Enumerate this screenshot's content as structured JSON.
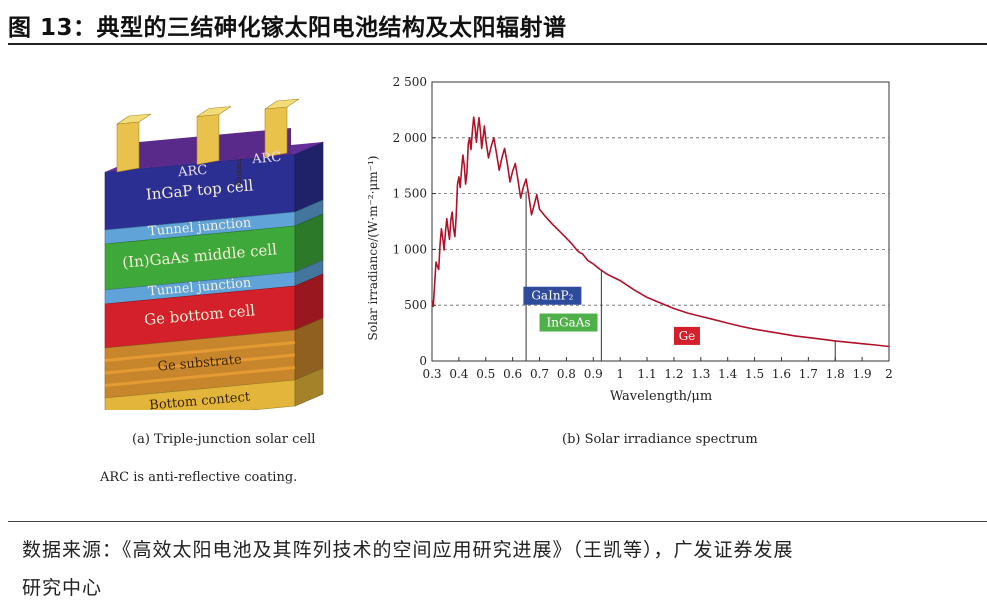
{
  "figure": {
    "title": "图 13：典型的三结砷化镓太阳电池结构及太阳辐射谱",
    "source_line1": "数据来源：《高效太阳电池及其阵列技术的空间应用研究进展》（王凯等），广发证券发展",
    "source_line2": "研究中心",
    "note": "ARC is anti-reflective coating."
  },
  "cell": {
    "caption": "(a) Triple-junction solar cell",
    "arc_left": "ARC",
    "arc_right": "ARC",
    "contact": "Contact",
    "layers": [
      {
        "label": "InGaP top cell",
        "color": "#2b2f92"
      },
      {
        "label": "Tunnel junction",
        "color": "#5fa3d8"
      },
      {
        "label": "(In)GaAs middle cell",
        "color": "#3fa83a"
      },
      {
        "label": "Tunnel junction",
        "color": "#5fa3d8"
      },
      {
        "label": "Ge bottom cell",
        "color": "#d4202a"
      },
      {
        "label": "Ge substrate",
        "color": "#c8862c"
      },
      {
        "label": "Bottom contect",
        "color": "#e3b53a"
      }
    ],
    "arc_color": "#5a2a8a",
    "contact_color": "#e8c24a"
  },
  "chart_data": {
    "type": "line",
    "caption": "(b) Solar irradiance spectrum",
    "xlabel": "Wavelength/μm",
    "ylabel": "Solar irradiance/(W·m⁻²·μm⁻¹)",
    "xlim": [
      0.3,
      2.0
    ],
    "ylim": [
      0,
      2500
    ],
    "xticks": [
      0.3,
      0.4,
      0.5,
      0.6,
      0.7,
      0.8,
      0.9,
      1.0,
      1.1,
      1.2,
      1.3,
      1.4,
      1.5,
      1.6,
      1.7,
      1.8,
      1.9,
      2.0
    ],
    "yticks": [
      0,
      500,
      1000,
      1500,
      2000,
      2500
    ],
    "ytick_labels": [
      "0",
      "500",
      "1 000",
      "1 500",
      "2 000",
      "2 500"
    ],
    "grid": "horizontal dashed",
    "line_color": "#b0122a",
    "series": [
      {
        "x": [
          0.3,
          0.31,
          0.32,
          0.33,
          0.34,
          0.35,
          0.36,
          0.37,
          0.38,
          0.39,
          0.4,
          0.41,
          0.42,
          0.43,
          0.44,
          0.45,
          0.46,
          0.47,
          0.48,
          0.49,
          0.5,
          0.52,
          0.54,
          0.56,
          0.58,
          0.6,
          0.62,
          0.64,
          0.66,
          0.68,
          0.7,
          0.72,
          0.75,
          0.78,
          0.8,
          0.82,
          0.84,
          0.85,
          0.86,
          0.88,
          0.9,
          0.92,
          0.95,
          1.0,
          1.05,
          1.1,
          1.15,
          1.2,
          1.25,
          1.3,
          1.35,
          1.4,
          1.45,
          1.5,
          1.55,
          1.6,
          1.65,
          1.7,
          1.75,
          1.8,
          1.85,
          1.9,
          1.95,
          2.0
        ],
        "values": [
          540,
          700,
          850,
          1050,
          1100,
          1150,
          1180,
          1260,
          1190,
          1300,
          1650,
          1720,
          1750,
          1680,
          2000,
          2050,
          2100,
          2080,
          2060,
          2010,
          1980,
          1920,
          1860,
          1820,
          1770,
          1700,
          1620,
          1560,
          1480,
          1400,
          1360,
          1300,
          1220,
          1150,
          1100,
          1050,
          990,
          970,
          960,
          900,
          870,
          830,
          780,
          720,
          640,
          570,
          520,
          470,
          430,
          400,
          370,
          340,
          310,
          285,
          265,
          245,
          225,
          210,
          195,
          180,
          168,
          155,
          143,
          130
        ]
      }
    ],
    "dividers": [
      0.65,
      0.93,
      1.8
    ],
    "bands": [
      {
        "label": "GaInP₂",
        "color": "#2e4a9a",
        "x": 0.64,
        "y": 540
      },
      {
        "label": "InGaAs",
        "color": "#4fb04a",
        "x": 0.7,
        "y": 300
      },
      {
        "label": "Ge",
        "color": "#d41e2a",
        "x": 1.2,
        "y": 180
      }
    ]
  }
}
